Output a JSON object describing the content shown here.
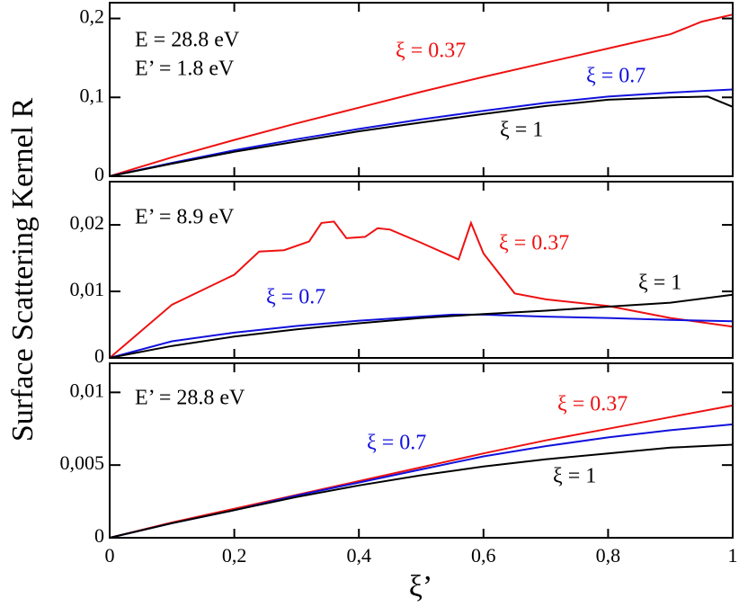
{
  "ylabel": "Surface Scattering Kernel R",
  "xlabel": "ξ’",
  "chart_data": [
    {
      "type": "line",
      "annotations": [
        "E = 28.8 eV",
        "E’ = 1.8 eV"
      ],
      "xlim": [
        0,
        1
      ],
      "xticks": [
        0,
        {
          "value": 0.2,
          "label": "0,2"
        },
        {
          "value": 0.4,
          "label": "0,4"
        },
        {
          "value": 0.6,
          "label": "0,6"
        },
        {
          "value": 0.8,
          "label": "0,8"
        },
        1
      ],
      "ylim": [
        0,
        0.22
      ],
      "yticks": [
        0,
        {
          "value": 0.1,
          "label": "0,1"
        },
        {
          "value": 0.2,
          "label": "0,2"
        }
      ],
      "series": [
        {
          "name": "ξ = 0.37",
          "color": "#ee1111",
          "x": [
            0,
            0.1,
            0.2,
            0.3,
            0.4,
            0.5,
            0.6,
            0.7,
            0.8,
            0.9,
            0.95,
            1
          ],
          "values": [
            0,
            0.024,
            0.046,
            0.067,
            0.087,
            0.107,
            0.126,
            0.144,
            0.162,
            0.18,
            0.196,
            0.205
          ]
        },
        {
          "name": "ξ = 0.7",
          "color": "#1111dd",
          "x": [
            0,
            0.1,
            0.2,
            0.3,
            0.4,
            0.5,
            0.6,
            0.7,
            0.8,
            0.9,
            1
          ],
          "values": [
            0,
            0.017,
            0.033,
            0.047,
            0.06,
            0.072,
            0.083,
            0.093,
            0.101,
            0.106,
            0.11
          ]
        },
        {
          "name": "ξ = 1",
          "color": "#000000",
          "x": [
            0,
            0.1,
            0.2,
            0.3,
            0.4,
            0.5,
            0.6,
            0.7,
            0.8,
            0.9,
            0.96,
            1
          ],
          "values": [
            0,
            0.016,
            0.031,
            0.044,
            0.057,
            0.068,
            0.079,
            0.089,
            0.097,
            0.1,
            0.101,
            0.088
          ]
        }
      ]
    },
    {
      "type": "line",
      "annotations": [
        "E’ = 8.9 eV"
      ],
      "xlim": [
        0,
        1
      ],
      "xticks": [
        0,
        {
          "value": 0.2,
          "label": "0,2"
        },
        {
          "value": 0.4,
          "label": "0,4"
        },
        {
          "value": 0.6,
          "label": "0,6"
        },
        {
          "value": 0.8,
          "label": "0,8"
        },
        1
      ],
      "ylim": [
        0,
        0.0265
      ],
      "yticks": [
        0,
        {
          "value": 0.01,
          "label": "0,01"
        },
        {
          "value": 0.02,
          "label": "0,02"
        }
      ],
      "series": [
        {
          "name": "ξ = 0.37",
          "color": "#ee1111",
          "x": [
            0,
            0.1,
            0.2,
            0.24,
            0.28,
            0.32,
            0.34,
            0.36,
            0.38,
            0.41,
            0.43,
            0.45,
            0.5,
            0.56,
            0.58,
            0.6,
            0.65,
            0.7,
            0.8,
            0.9,
            1
          ],
          "values": [
            0,
            0.008,
            0.0125,
            0.016,
            0.0162,
            0.0175,
            0.0203,
            0.0205,
            0.018,
            0.0182,
            0.0195,
            0.0193,
            0.0173,
            0.0148,
            0.0203,
            0.0157,
            0.0097,
            0.0088,
            0.0078,
            0.006,
            0.0047
          ]
        },
        {
          "name": "ξ = 0.7",
          "color": "#1111dd",
          "x": [
            0,
            0.1,
            0.2,
            0.3,
            0.4,
            0.5,
            0.55,
            0.6,
            0.7,
            0.8,
            0.9,
            1
          ],
          "values": [
            0,
            0.0025,
            0.0038,
            0.0048,
            0.0056,
            0.0062,
            0.0065,
            0.0065,
            0.0062,
            0.006,
            0.0057,
            0.0055
          ]
        },
        {
          "name": "ξ = 1",
          "color": "#000000",
          "x": [
            0,
            0.1,
            0.2,
            0.3,
            0.4,
            0.5,
            0.6,
            0.7,
            0.8,
            0.9,
            1
          ],
          "values": [
            0,
            0.0018,
            0.0032,
            0.0043,
            0.0052,
            0.006,
            0.0066,
            0.0071,
            0.0077,
            0.0083,
            0.0095
          ]
        }
      ]
    },
    {
      "type": "line",
      "annotations": [
        "E’ = 28.8 eV"
      ],
      "xlim": [
        0,
        1
      ],
      "xticks": [
        0,
        {
          "value": 0.2,
          "label": "0,2"
        },
        {
          "value": 0.4,
          "label": "0,4"
        },
        {
          "value": 0.6,
          "label": "0,6"
        },
        {
          "value": 0.8,
          "label": "0,8"
        },
        1
      ],
      "ylim": [
        0,
        0.012
      ],
      "yticks": [
        0,
        {
          "value": 0.005,
          "label": "0,005"
        },
        {
          "value": 0.01,
          "label": "0,01"
        }
      ],
      "series": [
        {
          "name": "ξ = 0.37",
          "color": "#ee1111",
          "x": [
            0,
            0.1,
            0.2,
            0.3,
            0.4,
            0.5,
            0.6,
            0.7,
            0.8,
            0.9,
            1
          ],
          "values": [
            0,
            0.00105,
            0.002,
            0.00295,
            0.0039,
            0.00485,
            0.0058,
            0.0067,
            0.0075,
            0.0083,
            0.0091
          ]
        },
        {
          "name": "ξ = 0.7",
          "color": "#1111dd",
          "x": [
            0,
            0.1,
            0.2,
            0.3,
            0.4,
            0.5,
            0.6,
            0.7,
            0.8,
            0.9,
            1
          ],
          "values": [
            0,
            0.001,
            0.0019,
            0.0029,
            0.0038,
            0.0047,
            0.0056,
            0.0063,
            0.0069,
            0.0074,
            0.0078
          ]
        },
        {
          "name": "ξ = 1",
          "color": "#000000",
          "x": [
            0,
            0.1,
            0.2,
            0.3,
            0.4,
            0.5,
            0.6,
            0.7,
            0.8,
            0.9,
            1
          ],
          "values": [
            0,
            0.001,
            0.0019,
            0.0028,
            0.0036,
            0.0043,
            0.0049,
            0.0054,
            0.0058,
            0.0062,
            0.0064
          ]
        }
      ]
    }
  ]
}
